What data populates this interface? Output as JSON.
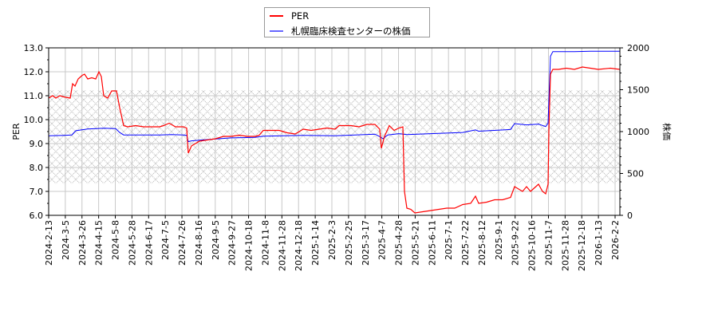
{
  "chart_data": {
    "type": "line",
    "title": "",
    "legend": {
      "position": "top-center",
      "entries": [
        {
          "label": "PER",
          "color": "#ff0000"
        },
        {
          "label": "札幌臨床検査センターの株価",
          "color": "#0000ff"
        }
      ]
    },
    "xlabel": "",
    "ylabel": "PER",
    "y2label": "株価",
    "ylim": [
      6.0,
      13.0
    ],
    "y2lim": [
      0,
      2000
    ],
    "yticks": [
      "6.0",
      "7.0",
      "8.0",
      "9.0",
      "10.0",
      "11.0",
      "12.0",
      "13.0"
    ],
    "y2ticks": [
      "0",
      "500",
      "1000",
      "1500",
      "2000"
    ],
    "xticks": [
      "2024-2-13",
      "2024-3-5",
      "2024-3-26",
      "2024-4-15",
      "2024-5-8",
      "2024-5-28",
      "2024-6-17",
      "2024-7-5",
      "2024-7-26",
      "2024-8-16",
      "2024-9-5",
      "2024-9-27",
      "2024-10-18",
      "2024-11-8",
      "2024-11-28",
      "2024-12-18",
      "2025-1-14",
      "2025-2-3",
      "2025-2-25",
      "2025-3-17",
      "2025-4-7",
      "2025-4-28",
      "2025-5-21",
      "2025-6-11",
      "2025-7-1",
      "2025-7-22",
      "2025-8-12",
      "2025-9-1",
      "2025-9-22",
      "2025-10-16",
      "2025-11-7",
      "2025-11-28",
      "2025-12-18",
      "2026-1-13",
      "2026-2-2"
    ],
    "grid": true,
    "shaded_band": {
      "per_range": [
        7.33,
        11.23
      ],
      "pattern": "crosshatch",
      "color": "#c0c0c0"
    },
    "series": [
      {
        "name": "PER",
        "axis": "left",
        "color": "#ff0000",
        "points": [
          [
            61,
            10.9
          ],
          [
            66,
            11.0
          ],
          [
            70,
            10.9
          ],
          [
            75,
            11.0
          ],
          [
            80,
            10.95
          ],
          [
            88,
            10.9
          ],
          [
            91,
            11.5
          ],
          [
            94,
            11.4
          ],
          [
            98,
            11.7
          ],
          [
            103,
            11.85
          ],
          [
            106,
            11.9
          ],
          [
            110,
            11.7
          ],
          [
            115,
            11.75
          ],
          [
            120,
            11.7
          ],
          [
            124,
            12.0
          ],
          [
            127,
            11.8
          ],
          [
            130,
            11.0
          ],
          [
            135,
            10.9
          ],
          [
            140,
            11.2
          ],
          [
            146,
            11.2
          ],
          [
            150,
            10.5
          ],
          [
            155,
            9.75
          ],
          [
            160,
            9.7
          ],
          [
            170,
            9.75
          ],
          [
            180,
            9.7
          ],
          [
            190,
            9.7
          ],
          [
            200,
            9.7
          ],
          [
            205,
            9.75
          ],
          [
            212,
            9.85
          ],
          [
            220,
            9.7
          ],
          [
            230,
            9.7
          ],
          [
            234,
            9.65
          ],
          [
            236,
            8.6
          ],
          [
            240,
            8.9
          ],
          [
            245,
            9.0
          ],
          [
            250,
            9.1
          ],
          [
            260,
            9.15
          ],
          [
            270,
            9.2
          ],
          [
            280,
            9.3
          ],
          [
            290,
            9.3
          ],
          [
            300,
            9.35
          ],
          [
            310,
            9.3
          ],
          [
            320,
            9.3
          ],
          [
            325,
            9.35
          ],
          [
            330,
            9.55
          ],
          [
            340,
            9.55
          ],
          [
            350,
            9.55
          ],
          [
            360,
            9.45
          ],
          [
            370,
            9.4
          ],
          [
            380,
            9.6
          ],
          [
            390,
            9.55
          ],
          [
            400,
            9.6
          ],
          [
            410,
            9.65
          ],
          [
            420,
            9.6
          ],
          [
            425,
            9.75
          ],
          [
            440,
            9.75
          ],
          [
            450,
            9.7
          ],
          [
            460,
            9.8
          ],
          [
            470,
            9.8
          ],
          [
            476,
            9.6
          ],
          [
            478,
            8.8
          ],
          [
            482,
            9.3
          ],
          [
            488,
            9.75
          ],
          [
            494,
            9.55
          ],
          [
            500,
            9.65
          ],
          [
            505,
            9.7
          ],
          [
            507,
            7.0
          ],
          [
            510,
            6.3
          ],
          [
            515,
            6.25
          ],
          [
            520,
            6.1
          ],
          [
            530,
            6.15
          ],
          [
            540,
            6.2
          ],
          [
            550,
            6.25
          ],
          [
            560,
            6.3
          ],
          [
            570,
            6.3
          ],
          [
            580,
            6.45
          ],
          [
            590,
            6.5
          ],
          [
            596,
            6.8
          ],
          [
            600,
            6.5
          ],
          [
            610,
            6.55
          ],
          [
            620,
            6.65
          ],
          [
            630,
            6.65
          ],
          [
            640,
            6.75
          ],
          [
            645,
            7.2
          ],
          [
            650,
            7.1
          ],
          [
            655,
            7.0
          ],
          [
            660,
            7.2
          ],
          [
            665,
            7.0
          ],
          [
            670,
            7.15
          ],
          [
            675,
            7.3
          ],
          [
            680,
            7.0
          ],
          [
            684,
            6.9
          ],
          [
            687,
            7.3
          ],
          [
            688,
            9.5
          ],
          [
            690,
            11.9
          ],
          [
            693,
            12.1
          ],
          [
            700,
            12.1
          ],
          [
            710,
            12.15
          ],
          [
            720,
            12.1
          ],
          [
            730,
            12.2
          ],
          [
            740,
            12.15
          ],
          [
            750,
            12.1
          ],
          [
            765,
            12.15
          ],
          [
            777,
            12.1
          ]
        ]
      },
      {
        "name": "札幌臨床検査センターの株価",
        "axis": "right",
        "color": "#0000ff",
        "points": [
          [
            61,
            950
          ],
          [
            80,
            955
          ],
          [
            90,
            960
          ],
          [
            95,
            1010
          ],
          [
            110,
            1030
          ],
          [
            130,
            1040
          ],
          [
            145,
            1035
          ],
          [
            150,
            990
          ],
          [
            155,
            960
          ],
          [
            170,
            960
          ],
          [
            200,
            960
          ],
          [
            215,
            965
          ],
          [
            230,
            960
          ],
          [
            234,
            955
          ],
          [
            236,
            880
          ],
          [
            240,
            890
          ],
          [
            260,
            905
          ],
          [
            290,
            925
          ],
          [
            320,
            930
          ],
          [
            330,
            945
          ],
          [
            380,
            955
          ],
          [
            420,
            950
          ],
          [
            470,
            970
          ],
          [
            476,
            940
          ],
          [
            480,
            915
          ],
          [
            486,
            960
          ],
          [
            500,
            975
          ],
          [
            510,
            965
          ],
          [
            540,
            975
          ],
          [
            580,
            990
          ],
          [
            596,
            1020
          ],
          [
            600,
            1005
          ],
          [
            640,
            1025
          ],
          [
            645,
            1095
          ],
          [
            660,
            1080
          ],
          [
            675,
            1090
          ],
          [
            684,
            1060
          ],
          [
            687,
            1100
          ],
          [
            690,
            1900
          ],
          [
            693,
            1955
          ],
          [
            720,
            1955
          ],
          [
            740,
            1960
          ],
          [
            777,
            1960
          ]
        ]
      }
    ]
  },
  "legend": {
    "per_label": "PER",
    "price_label": "札幌臨床検査センターの株価"
  }
}
